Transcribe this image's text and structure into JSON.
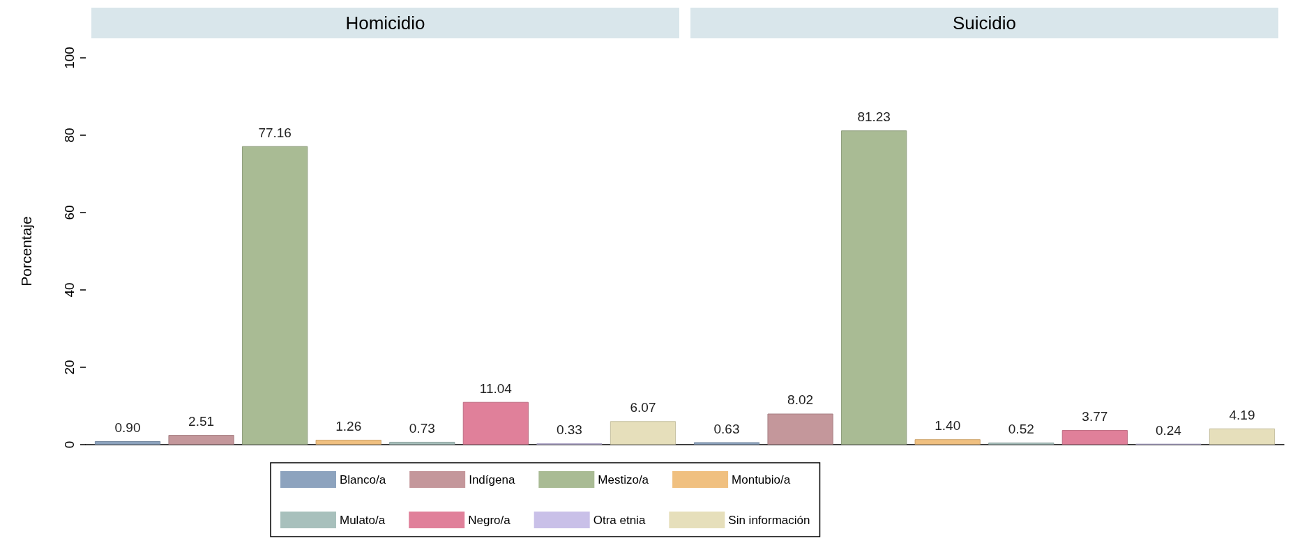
{
  "chart_data": {
    "type": "bar",
    "ylabel": "Porcentaje",
    "categories": [
      "Homicidio",
      "Suicidio"
    ],
    "ylim": [
      0,
      100
    ],
    "yticks": [
      0,
      20,
      40,
      60,
      80,
      100
    ],
    "grid": false,
    "legend": "bottom",
    "series": [
      {
        "name": "Blanco/a",
        "color": "#8da3be",
        "values": [
          0.9,
          0.63
        ],
        "value_labels": [
          "0.90",
          "0.63"
        ]
      },
      {
        "name": "Indígena",
        "color": "#c4979b",
        "values": [
          2.51,
          8.02
        ],
        "value_labels": [
          "2.51",
          "8.02"
        ]
      },
      {
        "name": "Mestizo/a",
        "color": "#a9bb94",
        "values": [
          77.16,
          81.23
        ],
        "value_labels": [
          "77.16",
          "81.23"
        ]
      },
      {
        "name": "Montubio/a",
        "color": "#f0c080",
        "values": [
          1.26,
          1.4
        ],
        "value_labels": [
          "1.26",
          "1.40"
        ]
      },
      {
        "name": "Mulato/a",
        "color": "#a8c0bc",
        "values": [
          0.73,
          0.52
        ],
        "value_labels": [
          "0.73",
          "0.52"
        ]
      },
      {
        "name": "Negro/a",
        "color": "#e0809a",
        "values": [
          11.04,
          3.77
        ],
        "value_labels": [
          "11.04",
          "3.77"
        ]
      },
      {
        "name": "Otra etnia",
        "color": "#c9c0e8",
        "values": [
          0.33,
          0.24
        ],
        "value_labels": [
          "0.33",
          "0.24"
        ]
      },
      {
        "name": "Sin información",
        "color": "#e6dfbb",
        "values": [
          6.07,
          4.19
        ],
        "value_labels": [
          "6.07",
          "4.19"
        ]
      }
    ]
  }
}
